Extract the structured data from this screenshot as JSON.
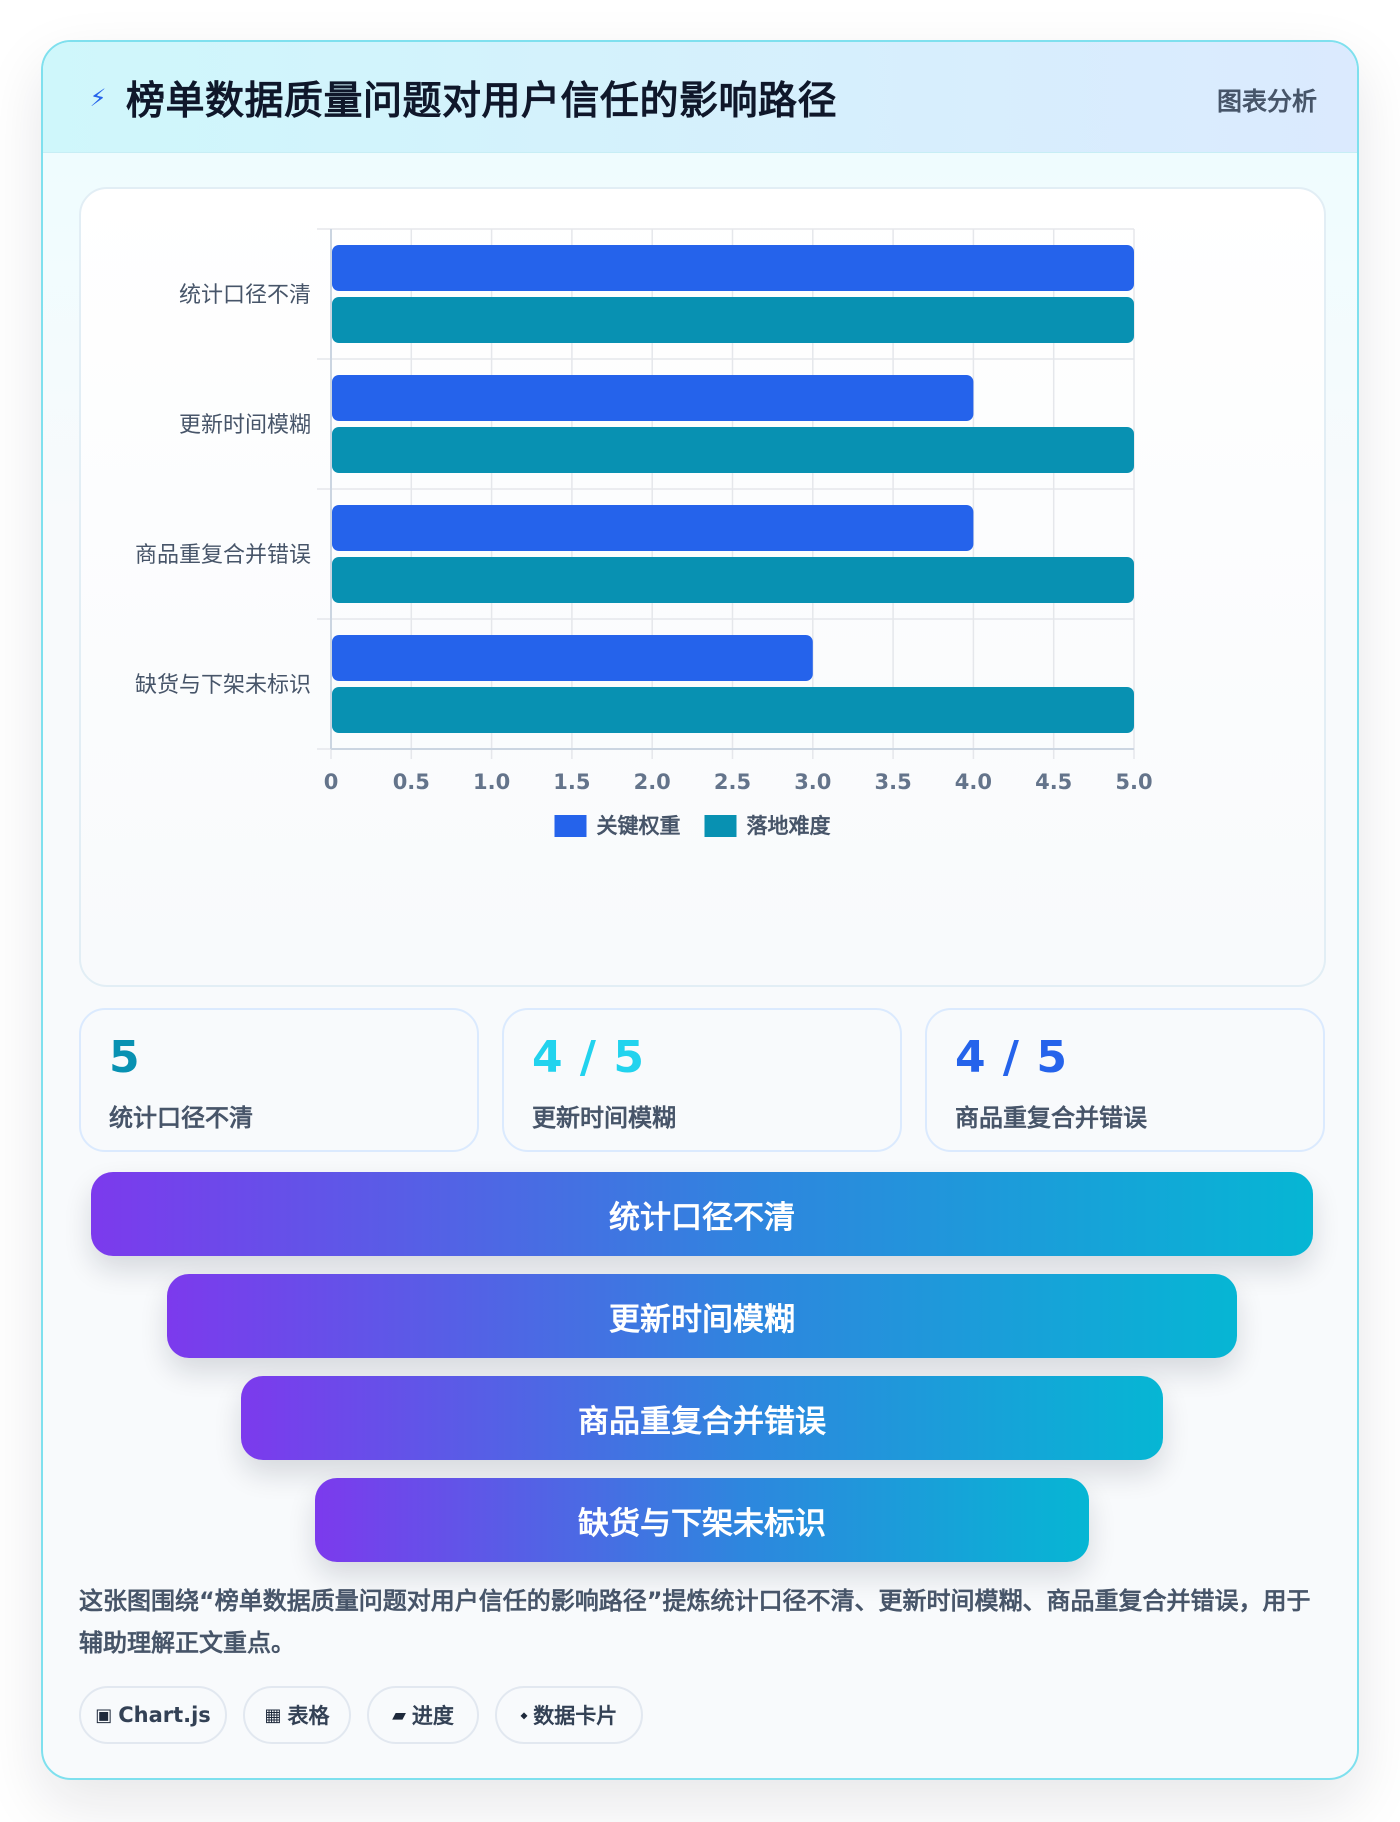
{
  "header": {
    "icon": "lightning-icon",
    "title": "榜单数据质量问题对用户信任的影响路径",
    "tag": "图表分析"
  },
  "chart_data": {
    "type": "bar",
    "orientation": "horizontal",
    "categories": [
      "统计口径不清",
      "更新时间模糊",
      "商品重复合并错误",
      "缺货与下架未标识"
    ],
    "series": [
      {
        "name": "关键权重",
        "values": [
          5,
          4,
          4,
          3
        ],
        "color": "#2563eb"
      },
      {
        "name": "落地难度",
        "values": [
          5,
          5,
          5,
          5
        ],
        "color": "#0891b2"
      }
    ],
    "xlim": [
      0,
      5
    ],
    "xticks": [
      "0",
      "0.5",
      "1.0",
      "1.5",
      "2.0",
      "2.5",
      "3.0",
      "3.5",
      "4.0",
      "4.5",
      "5.0"
    ],
    "grid": true,
    "legend": "bottom"
  },
  "stats": [
    {
      "value": "5",
      "label": "统计口径不清",
      "color": "#0891b2"
    },
    {
      "value": "4 / 5",
      "label": "更新时间模糊",
      "color": "#22d3ee"
    },
    {
      "value": "4 / 5",
      "label": "商品重复合并错误",
      "color": "#2563eb"
    }
  ],
  "funnel": [
    "统计口径不清",
    "更新时间模糊",
    "商品重复合并错误",
    "缺货与下架未标识"
  ],
  "description": "这张图围绕“榜单数据质量问题对用户信任的影响路径”提炼统计口径不清、更新时间模糊、商品重复合并错误，用于辅助理解正文重点。",
  "chips": [
    {
      "icon": "chip-square-icon",
      "glyph": "▣",
      "label": "Chart.js"
    },
    {
      "icon": "table-icon",
      "glyph": "▦",
      "label": "表格"
    },
    {
      "icon": "progress-icon",
      "glyph": "▰",
      "label": "进度"
    },
    {
      "icon": "diamond-icon",
      "glyph": "⬩",
      "label": "数据卡片"
    }
  ]
}
